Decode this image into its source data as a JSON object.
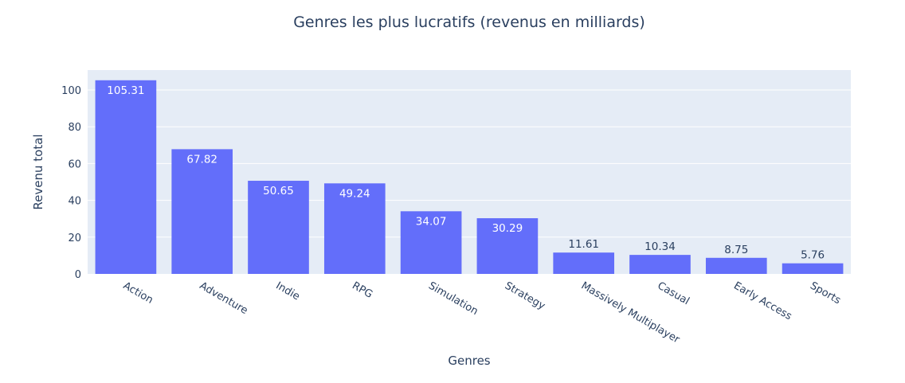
{
  "chart_data": {
    "type": "bar",
    "title": "Genres les plus lucratifs (revenus en milliards)",
    "xlabel": "Genres",
    "ylabel": "Revenu total",
    "categories": [
      "Action",
      "Adventure",
      "Indie",
      "RPG",
      "Simulation",
      "Strategy",
      "Massively Multiplayer",
      "Casual",
      "Early Access",
      "Sports"
    ],
    "values": [
      105.31,
      67.82,
      50.65,
      49.24,
      34.07,
      30.29,
      11.61,
      10.34,
      8.75,
      5.76
    ],
    "value_labels": [
      "105.31",
      "67.82",
      "50.65",
      "49.24",
      "34.07",
      "30.29",
      "11.61",
      "10.34",
      "8.75",
      "5.76"
    ],
    "yticks": [
      0,
      20,
      40,
      60,
      80,
      100
    ],
    "ylim": [
      0,
      110.85
    ],
    "grid": true,
    "legend": "none",
    "colors": {
      "bar": "#636efa",
      "plot_bg": "#e5ecf6",
      "grid": "#ffffff",
      "text": "#2a3f5f",
      "label_inside": "#ffffff"
    }
  }
}
